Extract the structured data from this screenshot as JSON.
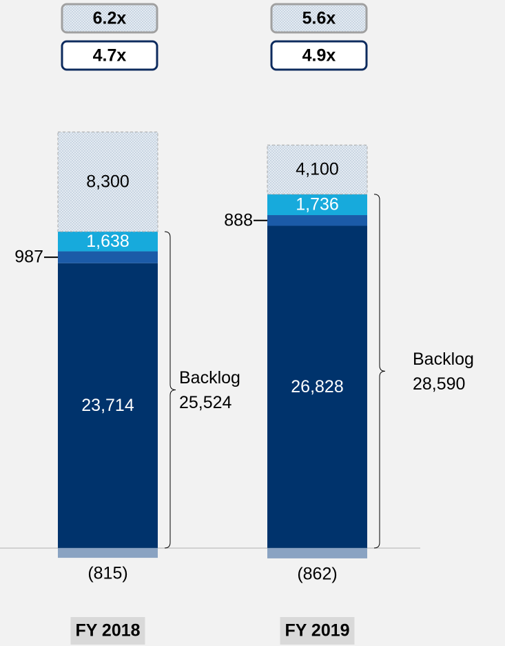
{
  "chart_data": {
    "type": "stacked_bar",
    "categories": [
      "FY 2018",
      "FY 2019"
    ],
    "ylim": [
      -5000,
      40000
    ],
    "series": [
      {
        "color": "#00336c",
        "label_color": "#ffffff",
        "label_position": "inside",
        "values": [
          23714,
          26828
        ],
        "value_labels": [
          "23,714",
          "26,828"
        ]
      },
      {
        "color": "#1b5ba8",
        "label_color": "#000000",
        "label_position": "left",
        "values": [
          987,
          888
        ]
      },
      {
        "color": "#17aadc",
        "label_color": "#ffffff",
        "label_position": "inside",
        "values": [
          1638,
          1736
        ],
        "value_labels": [
          "1,638",
          "1,736"
        ]
      },
      {
        "color": "#dde6ef",
        "hatched": true,
        "label_color": "#000000",
        "label_position": "inside",
        "values": [
          8300,
          4100
        ],
        "value_labels": [
          "8,300",
          "4,100"
        ]
      },
      {
        "color": "#8aa3c2",
        "label_color": "#000000",
        "label_position": "below",
        "values": [
          -815,
          -862
        ],
        "value_labels": [
          "(815)",
          "(862)"
        ]
      }
    ],
    "backlog": {
      "label": "Backlog",
      "values": [
        25524,
        28590
      ],
      "value_labels": [
        "25,524",
        "28,590"
      ]
    },
    "multiples": [
      [
        "6.2x",
        "4.7x"
      ],
      [
        "5.6x",
        "4.9x"
      ]
    ]
  }
}
